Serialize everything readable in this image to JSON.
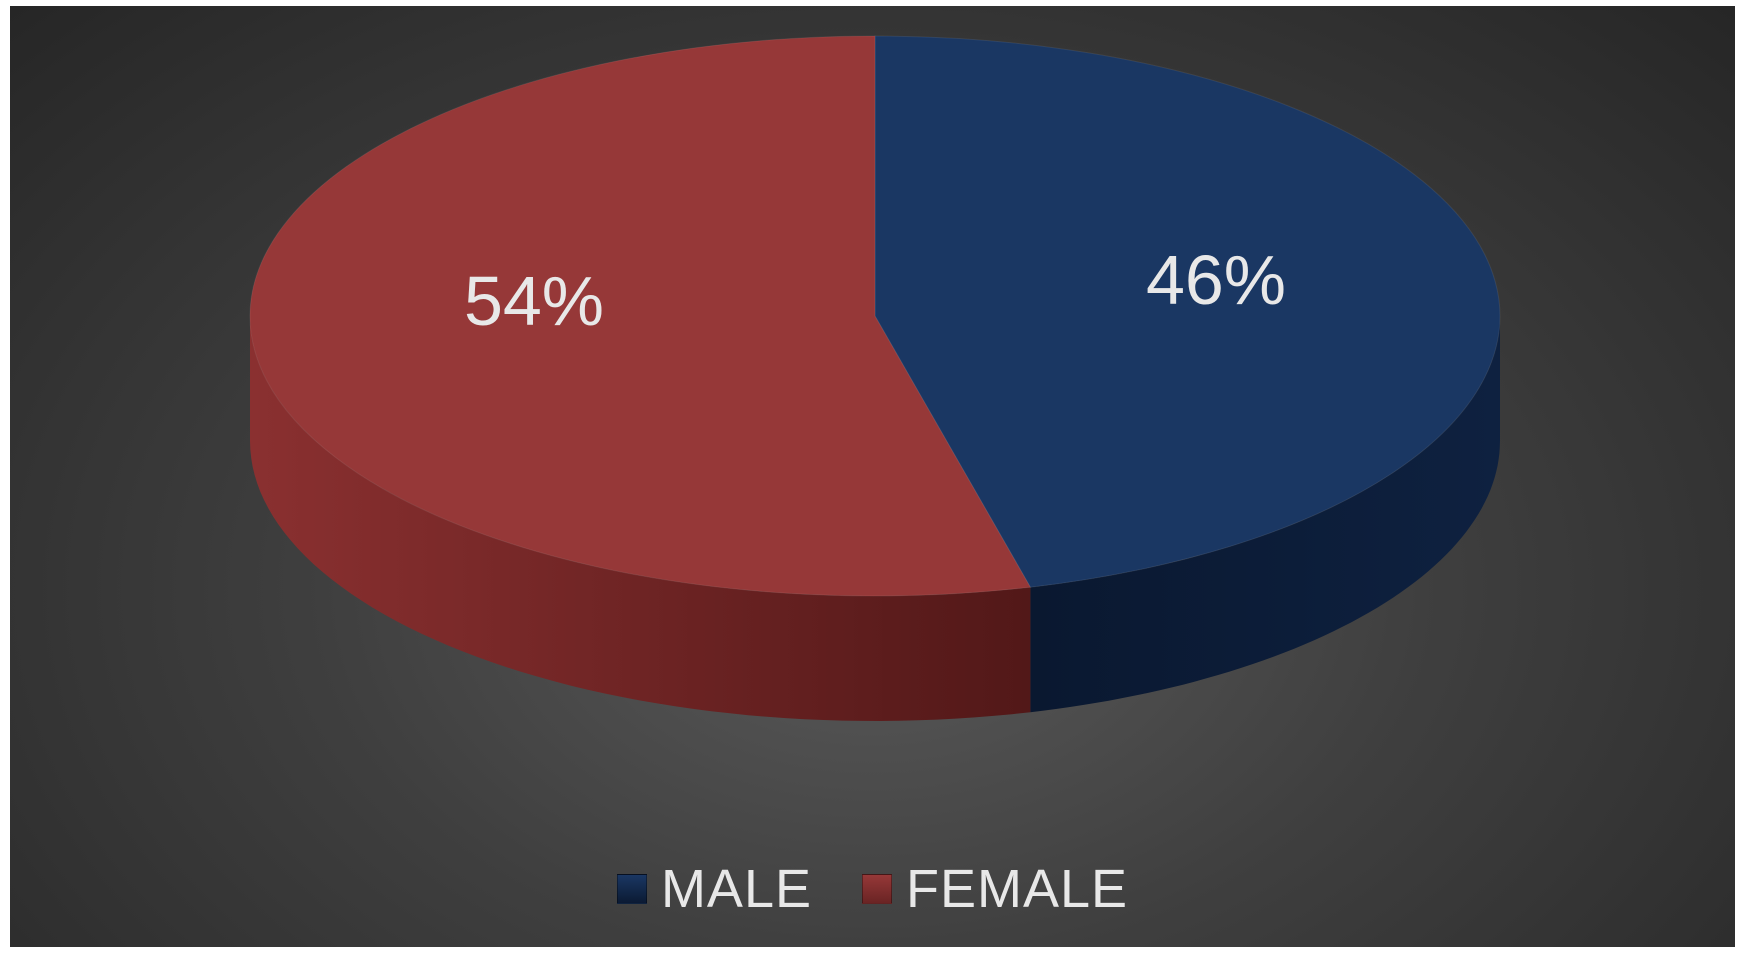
{
  "chart_data": {
    "type": "pie",
    "subtype": "3d",
    "categories": [
      "MALE",
      "FEMALE"
    ],
    "values": [
      46,
      54
    ],
    "data_labels": [
      "46%",
      "54%"
    ],
    "colors": [
      "#1a3763",
      "#963838"
    ],
    "side_colors": [
      "#0b1a33",
      "#6a2424"
    ],
    "legend": {
      "position": "bottom",
      "entries": [
        "MALE",
        "FEMALE"
      ]
    },
    "title": ""
  }
}
